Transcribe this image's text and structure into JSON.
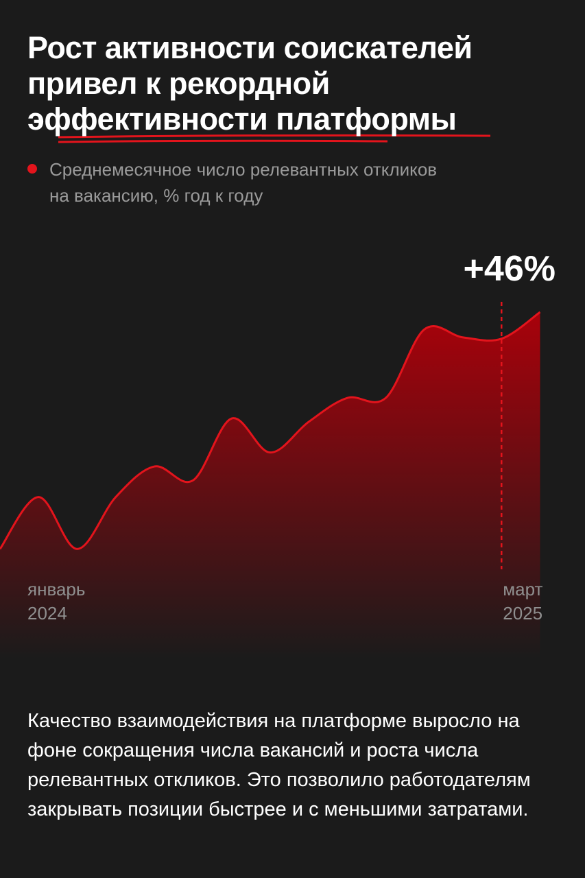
{
  "chart_data": {
    "type": "area",
    "title": "Рост активности соискателей\nпривел к рекордной\nэффективности платформы",
    "subtitle": "Среднемесячное число релевантных откликов\nна вакансию, % год к году",
    "annotation": "+46%",
    "categories": [
      "январь\n2024",
      null,
      null,
      null,
      null,
      null,
      null,
      null,
      null,
      null,
      null,
      null,
      null,
      "март\n2025",
      null
    ],
    "values": [
      14.4,
      22.2,
      14.4,
      22.2,
      26.8,
      24.7,
      34.0,
      28.9,
      33.5,
      37.1,
      37.1,
      47.4,
      46.2,
      46.0,
      50.0
    ],
    "color": "#e3141c",
    "ylim": [
      0,
      50
    ]
  },
  "body": "Качество взаимодействия на платформе выросло на фоне сокращения числа вакансий и роста числа релевантных откликов. Это позволило работодателям закрывать позиции быстрее и с меньшими затратами."
}
